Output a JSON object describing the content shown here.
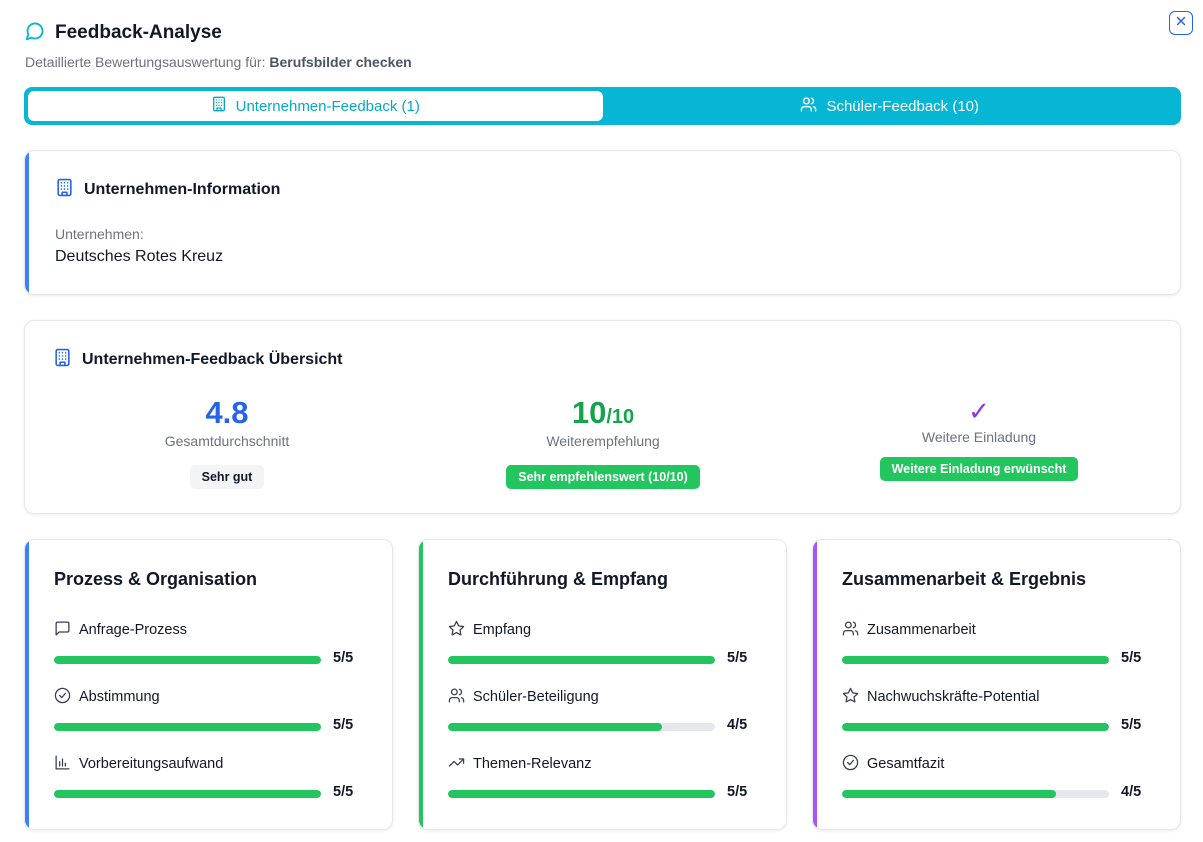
{
  "header": {
    "title": "Feedback-Analyse",
    "subtitle_prefix": "Detaillierte Bewertungsauswertung für: ",
    "subtitle_name": "Berufsbilder checken"
  },
  "tabs": [
    {
      "label": "Unternehmen-Feedback (1)",
      "icon": "building-icon",
      "active": true
    },
    {
      "label": "Schüler-Feedback (10)",
      "icon": "users-icon",
      "active": false
    }
  ],
  "company_info": {
    "heading": "Unternehmen-Information",
    "label": "Unternehmen:",
    "value": "Deutsches Rotes Kreuz"
  },
  "overview": {
    "heading": "Unternehmen-Feedback Übersicht",
    "average": {
      "value": "4.8",
      "label": "Gesamtdurchschnitt",
      "badge": "Sehr gut",
      "color": "#2563eb"
    },
    "recommendation": {
      "value": "10",
      "suffix": "/10",
      "label": "Weiterempfehlung",
      "badge": "Sehr empfehlenswert (10/10)",
      "color": "#16a34a"
    },
    "invitation": {
      "value": "✓",
      "label": "Weitere Einladung",
      "badge": "Weitere Einladung erwünscht",
      "color": "#9333ea"
    }
  },
  "sections": [
    {
      "title": "Prozess & Organisation",
      "accent": "#3b82f6",
      "metrics": [
        {
          "label": "Anfrage-Prozess",
          "icon": "message-square-icon",
          "score": 5,
          "max": 5,
          "display": "5/5"
        },
        {
          "label": "Abstimmung",
          "icon": "check-circle-icon",
          "score": 5,
          "max": 5,
          "display": "5/5"
        },
        {
          "label": "Vorbereitungsaufwand",
          "icon": "bar-chart-icon",
          "score": 5,
          "max": 5,
          "display": "5/5"
        }
      ]
    },
    {
      "title": "Durchführung & Empfang",
      "accent": "#22c55e",
      "metrics": [
        {
          "label": "Empfang",
          "icon": "star-icon",
          "score": 5,
          "max": 5,
          "display": "5/5"
        },
        {
          "label": "Schüler-Beteiligung",
          "icon": "users-icon",
          "score": 4,
          "max": 5,
          "display": "4/5"
        },
        {
          "label": "Themen-Relevanz",
          "icon": "trending-up-icon",
          "score": 5,
          "max": 5,
          "display": "5/5"
        }
      ]
    },
    {
      "title": "Zusammenarbeit & Ergebnis",
      "accent": "#a855f7",
      "metrics": [
        {
          "label": "Zusammenarbeit",
          "icon": "users-icon",
          "score": 5,
          "max": 5,
          "display": "5/5"
        },
        {
          "label": "Nachwuchskräfte-Potential",
          "icon": "star-icon",
          "score": 5,
          "max": 5,
          "display": "5/5"
        },
        {
          "label": "Gesamtfazit",
          "icon": "check-circle-icon",
          "score": 4,
          "max": 5,
          "display": "4/5"
        }
      ]
    }
  ]
}
